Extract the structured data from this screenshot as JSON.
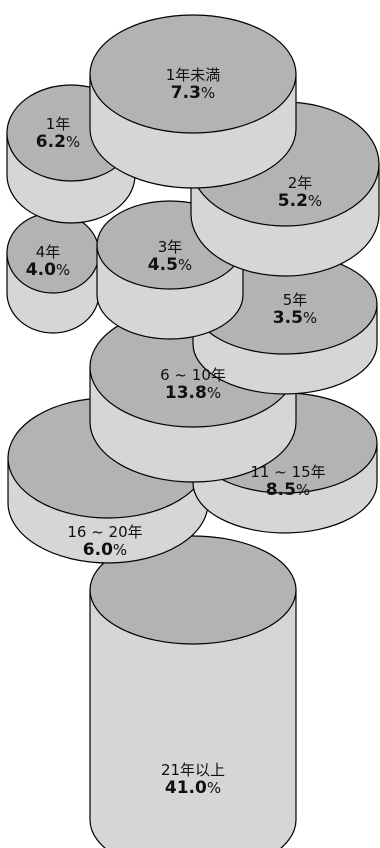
{
  "chart_data": {
    "type": "pie",
    "title": "",
    "unit": "%",
    "colors": {
      "top": "#b3b3b3",
      "side": "#d6d6d6",
      "bottom_face": "#c8c8c8",
      "outline": "#000000"
    },
    "categories": [
      "1年未満",
      "1年",
      "2年",
      "3年",
      "4年",
      "5年",
      "6～10年",
      "11～15年",
      "16～20年",
      "21年以上"
    ],
    "values": [
      7.3,
      6.2,
      5.2,
      4.5,
      4.0,
      3.5,
      13.8,
      8.5,
      6.0,
      41.0
    ],
    "labels": [
      {
        "name": "1年未満",
        "value": "7.3",
        "pct": "%"
      },
      {
        "name": "1年",
        "value": "6.2",
        "pct": "%"
      },
      {
        "name": "2年",
        "value": "5.2",
        "pct": "%"
      },
      {
        "name": "3年",
        "value": "4.5",
        "pct": "%"
      },
      {
        "name": "4年",
        "value": "4.0",
        "pct": "%"
      },
      {
        "name": "5年",
        "value": "3.5",
        "pct": "%"
      },
      {
        "name": "6 ~ 10年",
        "value": "13.8",
        "pct": "%"
      },
      {
        "name": "11 ~ 15年",
        "value": "8.5",
        "pct": "%"
      },
      {
        "name": "16 ~ 20年",
        "value": "6.0",
        "pct": "%"
      },
      {
        "name": "21年以上",
        "value": "41.0",
        "pct": "%"
      }
    ]
  }
}
